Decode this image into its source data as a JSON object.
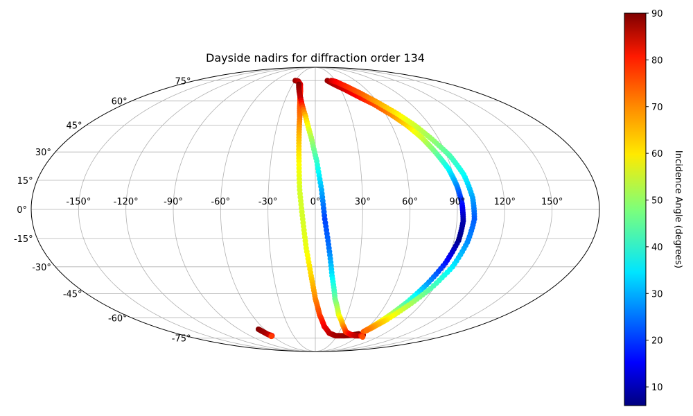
{
  "chart_data": {
    "type": "scatter",
    "projection": "mollweide",
    "title": "Dayside nadirs for diffraction order 134",
    "xlabel": "",
    "ylabel": "",
    "xlim": [
      -180,
      180
    ],
    "ylim": [
      -90,
      90
    ],
    "grid": true,
    "x_ticks": [
      -150,
      -120,
      -90,
      -60,
      -30,
      0,
      30,
      60,
      90,
      120,
      150
    ],
    "x_tick_labels": [
      "-150°",
      "-120°",
      "-90°",
      "-60°",
      "-30°",
      "0°",
      "30°",
      "60°",
      "90°",
      "120°",
      "150°"
    ],
    "y_ticks": [
      75,
      60,
      45,
      30,
      15,
      0,
      -15,
      -30,
      -45,
      -60,
      -75
    ],
    "y_tick_labels": [
      "75°",
      "60°",
      "45°",
      "30°",
      "15°",
      "0°",
      "-15°",
      "-30°",
      "-45°",
      "-60°",
      "-75°"
    ],
    "colorbar": {
      "label": "Incidence Angle (degrees)",
      "colormap": "jet",
      "range": [
        6,
        90
      ],
      "ticks": [
        10,
        20,
        30,
        40,
        50,
        60,
        70,
        80,
        90
      ],
      "tick_labels": [
        "10",
        "20",
        "30",
        "40",
        "50",
        "60",
        "70",
        "80",
        "90"
      ]
    },
    "series": [
      {
        "points": [
          [
            -30,
            75,
            88
          ],
          [
            -25,
            74.5,
            86
          ],
          [
            -20,
            72,
            83
          ],
          [
            -17,
            67,
            78
          ],
          [
            -15,
            60,
            74
          ],
          [
            -13,
            50,
            70
          ],
          [
            -12,
            38,
            64
          ],
          [
            -11,
            25,
            59
          ],
          [
            -10,
            10,
            55
          ],
          [
            -8,
            -5,
            55
          ],
          [
            -6,
            -20,
            57
          ],
          [
            -3,
            -35,
            62
          ],
          [
            0,
            -48,
            68
          ],
          [
            4,
            -58,
            74
          ],
          [
            10,
            -66,
            80
          ],
          [
            18,
            -71,
            84
          ],
          [
            28,
            -73,
            87
          ],
          [
            40,
            -73,
            88
          ],
          [
            50,
            -72.5,
            89
          ],
          [
            57,
            -71.5,
            90
          ]
        ]
      },
      {
        "points": [
          [
            -22,
            72,
            90
          ],
          [
            -15,
            62,
            84
          ],
          [
            -8,
            50,
            63
          ],
          [
            -3,
            38,
            52
          ],
          [
            1,
            25,
            42
          ],
          [
            4,
            10,
            31
          ],
          [
            6,
            -5,
            22
          ],
          [
            9,
            -20,
            26
          ],
          [
            12,
            -35,
            36
          ],
          [
            16,
            -48,
            46
          ],
          [
            22,
            -58,
            56
          ],
          [
            30,
            -65,
            66
          ],
          [
            38,
            -70,
            74
          ],
          [
            47,
            -72,
            80
          ],
          [
            55,
            -73,
            84
          ],
          [
            62,
            -73,
            86
          ],
          [
            65,
            -72.5,
            87
          ]
        ]
      },
      {
        "points": [
          [
            18,
            75,
            88
          ],
          [
            25,
            72,
            86
          ],
          [
            35,
            68,
            83
          ],
          [
            45,
            63,
            79
          ],
          [
            55,
            58,
            74
          ],
          [
            65,
            51,
            68
          ],
          [
            72,
            45,
            62
          ],
          [
            78,
            38,
            55
          ],
          [
            83,
            30,
            47
          ],
          [
            88,
            21,
            38
          ],
          [
            91,
            12,
            28
          ],
          [
            93,
            3,
            18
          ],
          [
            94,
            -6,
            10
          ],
          [
            93,
            -16,
            7
          ],
          [
            89,
            -28,
            18
          ],
          [
            83,
            -40,
            30
          ],
          [
            77,
            -50,
            42
          ],
          [
            71,
            -58,
            53
          ],
          [
            66,
            -64,
            62
          ],
          [
            62,
            -68,
            68
          ],
          [
            60,
            -70,
            72
          ]
        ]
      },
      {
        "points": [
          [
            24,
            75,
            84
          ],
          [
            30,
            74,
            80
          ],
          [
            40,
            70,
            76
          ],
          [
            50,
            65,
            72
          ],
          [
            60,
            59,
            66
          ],
          [
            70,
            52,
            60
          ],
          [
            78,
            45,
            55
          ],
          [
            85,
            37,
            50
          ],
          [
            92,
            28,
            44
          ],
          [
            97,
            18,
            38
          ],
          [
            100,
            6,
            30
          ],
          [
            101,
            -5,
            24
          ],
          [
            99,
            -17,
            28
          ],
          [
            95,
            -30,
            36
          ],
          [
            88,
            -42,
            44
          ],
          [
            80,
            -52,
            52
          ],
          [
            72,
            -61,
            60
          ],
          [
            66,
            -66,
            66
          ],
          [
            62,
            -69,
            70
          ]
        ]
      },
      {
        "points": [
          [
            -67,
            -68,
            90
          ],
          [
            -65,
            -70,
            88
          ],
          [
            -63,
            -72,
            86
          ],
          [
            -60,
            -73,
            82
          ],
          [
            -62,
            -73.5,
            75
          ]
        ]
      },
      {
        "points": [
          [
            63,
            -73,
            80
          ],
          [
            66,
            -73.5,
            76
          ],
          [
            68,
            -74,
            73
          ]
        ]
      }
    ]
  }
}
